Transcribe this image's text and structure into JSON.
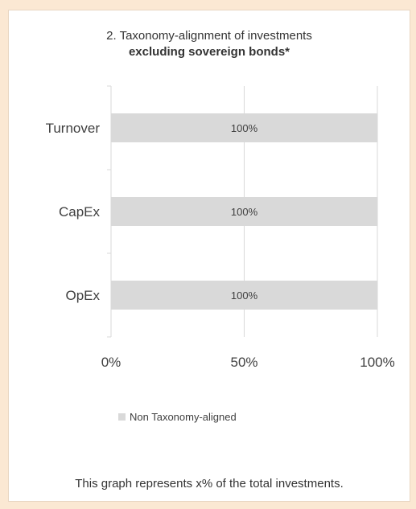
{
  "chart_data": {
    "type": "bar",
    "orientation": "horizontal",
    "title": "2. Taxonomy-alignment of investments",
    "subtitle": "excluding sovereign bonds*",
    "categories": [
      "Turnover",
      "CapEx",
      "OpEx"
    ],
    "series": [
      {
        "name": "Non Taxonomy-aligned",
        "values": [
          100,
          100,
          100
        ],
        "data_labels": [
          "100%",
          "100%",
          "100%"
        ],
        "color": "#d9d9d9"
      }
    ],
    "xlim": [
      0,
      100
    ],
    "x_ticks": [
      0,
      50,
      100
    ],
    "x_tick_labels": [
      "0%",
      "50%",
      "100%"
    ],
    "grid": true,
    "legend_position": "bottom"
  },
  "caption": "This graph represents x% of the total investments."
}
